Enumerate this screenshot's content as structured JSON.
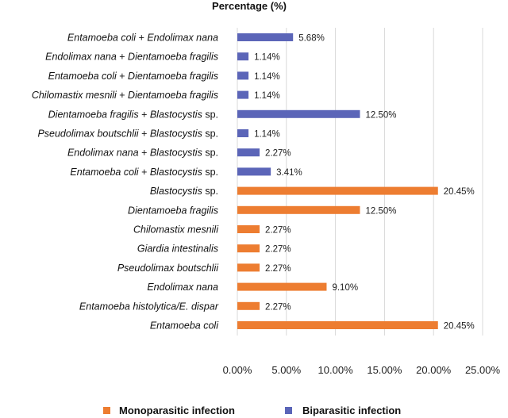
{
  "chart_data": {
    "type": "bar",
    "orientation": "horizontal",
    "title": "Percentage (%)",
    "xlim": [
      0,
      25
    ],
    "ticks": [
      0,
      5,
      10,
      15,
      20,
      25
    ],
    "tick_labels": [
      "0.00%",
      "5.00%",
      "10.00%",
      "15.00%",
      "20.00%",
      "25.00%"
    ],
    "grid": true,
    "legend_position": "bottom",
    "colors": {
      "mono": "#ed7d31",
      "bi": "#5b65b8",
      "grid": "#d9d9d9"
    },
    "legend": [
      {
        "key": "mono",
        "label": "Monoparasitic infection"
      },
      {
        "key": "bi",
        "label": "Biparasitic infection"
      }
    ],
    "bars": [
      {
        "label": "Entamoeba coli + Endolimax nana",
        "parts": [
          "Entamoeba coli",
          " + ",
          "Endolimax nana"
        ],
        "value": 5.68,
        "value_label": "5.68%",
        "series": "bi"
      },
      {
        "label": "Endolimax nana + Dientamoeba fragilis",
        "parts": [
          "Endolimax nana",
          " + ",
          "Dientamoeba fragilis"
        ],
        "value": 1.14,
        "value_label": "1.14%",
        "series": "bi"
      },
      {
        "label": "Entamoeba coli + Dientamoeba fragilis",
        "parts": [
          "Entamoeba coli",
          " + ",
          "Dientamoeba fragilis"
        ],
        "value": 1.14,
        "value_label": "1.14%",
        "series": "bi"
      },
      {
        "label": "Chilomastix mesnili + Dientamoeba fragilis",
        "parts": [
          "Chilomastix mesnili",
          " + ",
          "Dientamoeba fragilis"
        ],
        "value": 1.14,
        "value_label": "1.14%",
        "series": "bi"
      },
      {
        "label": "Dientamoeba fragilis + Blastocystis sp.",
        "parts": [
          "Dientamoeba fragilis",
          " + ",
          "Blastocystis",
          " sp."
        ],
        "value": 12.5,
        "value_label": "12.50%",
        "series": "bi"
      },
      {
        "label": "Pseudolimax boutschlii + Blastocystis sp.",
        "parts": [
          "Pseudolimax boutschlii",
          " + ",
          "Blastocystis",
          " sp."
        ],
        "value": 1.14,
        "value_label": "1.14%",
        "series": "bi"
      },
      {
        "label": "Endolimax nana + Blastocystis sp.",
        "parts": [
          "Endolimax nana",
          " + ",
          "Blastocystis",
          " sp."
        ],
        "value": 2.27,
        "value_label": "2.27%",
        "series": "bi"
      },
      {
        "label": "Entamoeba coli + Blastocystis sp.",
        "parts": [
          "Entamoeba coli",
          " + ",
          "Blastocystis",
          " sp."
        ],
        "value": 3.41,
        "value_label": "3.41%",
        "series": "bi"
      },
      {
        "label": "Blastocystis sp.",
        "parts": [
          "Blastocystis",
          " sp."
        ],
        "value": 20.45,
        "value_label": "20.45%",
        "series": "mono"
      },
      {
        "label": "Dientamoeba fragilis",
        "parts": [
          "Dientamoeba fragilis"
        ],
        "value": 12.5,
        "value_label": "12.50%",
        "series": "mono"
      },
      {
        "label": "Chilomastix mesnili",
        "parts": [
          "Chilomastix mesnili"
        ],
        "value": 2.27,
        "value_label": "2.27%",
        "series": "mono"
      },
      {
        "label": "Giardia intestinalis",
        "parts": [
          "Giardia intestinalis"
        ],
        "value": 2.27,
        "value_label": "2.27%",
        "series": "mono"
      },
      {
        "label": "Pseudolimax boutschlii",
        "parts": [
          "Pseudolimax boutschlii"
        ],
        "value": 2.27,
        "value_label": "2.27%",
        "series": "mono"
      },
      {
        "label": "Endolimax nana",
        "parts": [
          "Endolimax nana"
        ],
        "value": 9.1,
        "value_label": "9.10%",
        "series": "mono"
      },
      {
        "label": "Entamoeba histolytica/E. dispar",
        "parts": [
          "Entamoeba histolytica/E. dispar"
        ],
        "value": 2.27,
        "value_label": "2.27%",
        "series": "mono"
      },
      {
        "label": "Entamoeba coli",
        "parts": [
          "Entamoeba coli"
        ],
        "value": 20.45,
        "value_label": "20.45%",
        "series": "mono"
      }
    ]
  }
}
